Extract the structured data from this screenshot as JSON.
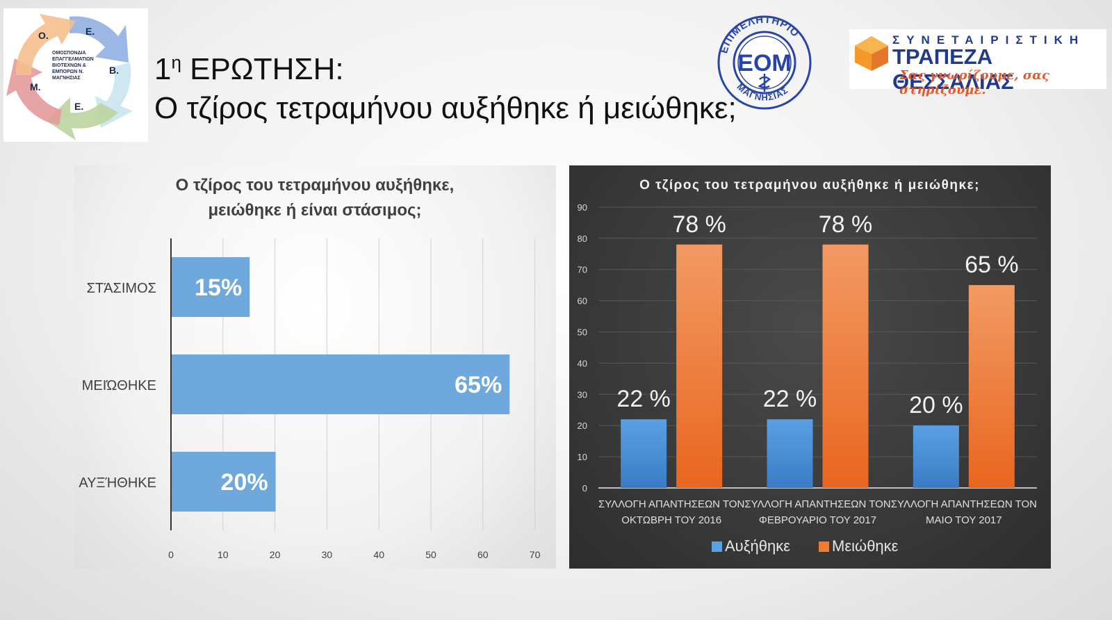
{
  "header": {
    "title_line1_main": "1",
    "title_line1_sup": "η",
    "title_line1_rest": " ΕΡΩΤΗΣΗ:",
    "title_line2": "Ο τζίρος τετραμήνου αυξήθηκε ή μειώθηκε;"
  },
  "logos": {
    "omep": {
      "letters": [
        "Ο.",
        "Ε.",
        "Β.",
        "Ε.",
        "Μ."
      ],
      "lines": [
        "ΟΜΟΣΠΟΝΔΙΑ",
        "ΕΠΑΓΓΕΛΜΑΤΙΩΝ",
        "ΒΙΟΤΕΧΝΩΝ &",
        "ΕΜΠΟΡΩΝ Ν.",
        "ΜΑΓΝΗΣΙΑΣ"
      ]
    },
    "eom": {
      "arc_top": "ΕΠΙΜΕΛΗΤΗΡΙΟ",
      "center": "ΕΟΜ",
      "arc_bottom": "ΜΑΓΝΗΣΙΑΣ"
    },
    "bank": {
      "top": "ΣΥΝΕΤΑΙΡΙΣΤΙΚΗ",
      "name": "ΤΡΑΠΕΖΑ ΘΕΣΣΑΛΙΑΣ",
      "slogan": "Σας γνωρίζουμε, σας στηρίζουμε."
    }
  },
  "colors": {
    "bar_blue": "#6fa8dc",
    "orange": "#ed7d31",
    "blue_series": "#4a90d9",
    "dark_bg": "#3a3a3a"
  },
  "chart_data": [
    {
      "type": "bar",
      "orientation": "horizontal",
      "title": [
        "Ο τζίρος του τετραμήνου αυξήθηκε,",
        "μειώθηκε ή είναι στάσιμος;"
      ],
      "categories": [
        "ΣΤΆΣΙΜΟΣ",
        "ΜΕΙΏΘΗΚΕ",
        "ΑΥΞΉΘΗΚΕ"
      ],
      "values": [
        15,
        65,
        20
      ],
      "data_labels": [
        "15%",
        "65%",
        "20%"
      ],
      "xlim": [
        0,
        70
      ],
      "xticks": [
        "0",
        "10",
        "20",
        "30",
        "40",
        "50",
        "60",
        "70"
      ],
      "grid": true
    },
    {
      "type": "bar",
      "orientation": "vertical",
      "title": "Ο τζίρος του τετραμήνου αυξήθηκε ή μειώθηκε;",
      "categories": [
        [
          "ΣΥΛΛΟΓΗ ΑΠΑΝΤΗΣΕΩΝ ΤΟΝ",
          "ΟΚΤΩΒΡΗ ΤΟΥ 2016"
        ],
        [
          "ΣΥΛΛΟΓΗ ΑΠΑΝΤΗΣΕΩΝ ΤΟΝ",
          "ΦΕΒΡΟΥΑΡΙΟ ΤΟΥ 2017"
        ],
        [
          "ΣΥΛΛΟΓΗ ΑΠΑΝΤΗΣΕΩΝ ΤΟΝ",
          "ΜΑΙΟ ΤΟΥ 2017"
        ]
      ],
      "series": [
        {
          "name": "Αυξήθηκε",
          "values": [
            22,
            22,
            20
          ],
          "data_labels": [
            "22 %",
            "22 %",
            "20 %"
          ]
        },
        {
          "name": "Μειώθηκε",
          "values": [
            78,
            78,
            65
          ],
          "data_labels": [
            "78 %",
            "78 %",
            "65 %"
          ]
        }
      ],
      "ylim": [
        0,
        90
      ],
      "yticks": [
        "0",
        "10",
        "20",
        "30",
        "40",
        "50",
        "60",
        "70",
        "80",
        "90"
      ],
      "grid": true,
      "legend": "bottom"
    }
  ]
}
